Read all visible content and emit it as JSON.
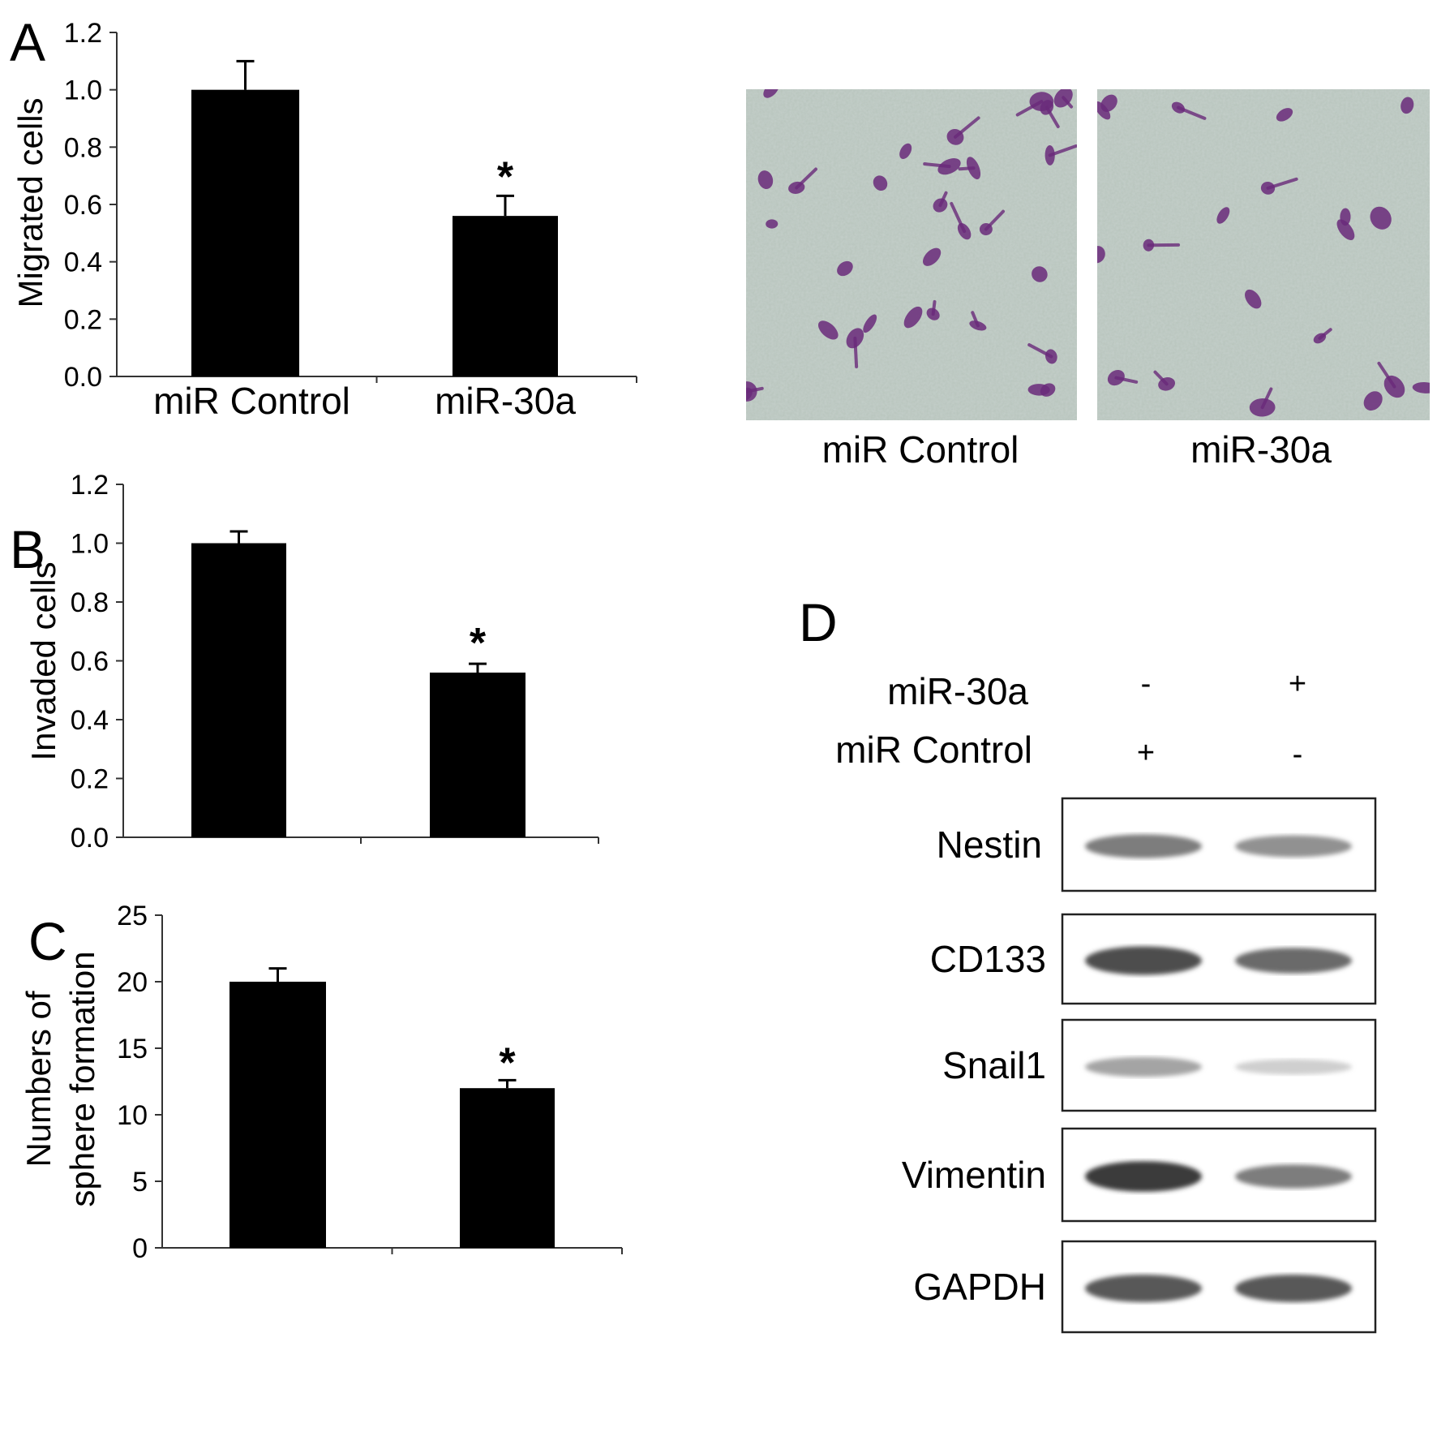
{
  "panels": {
    "A": "A",
    "B": "B",
    "C": "C",
    "D": "D"
  },
  "chart_data": [
    {
      "type": "bar",
      "panel": "A",
      "categories": [
        "miR Control",
        "miR-30a"
      ],
      "values": [
        1.0,
        0.56
      ],
      "errors": [
        0.1,
        0.07
      ],
      "significance": [
        "",
        "*"
      ],
      "ylabel": "Migrated cells",
      "xlabel": "",
      "ylim": [
        0,
        1.2
      ],
      "yticks": [
        "0.0",
        "0.2",
        "0.4",
        "0.6",
        "0.8",
        "1.0",
        "1.2"
      ],
      "color": "#000000"
    },
    {
      "type": "bar",
      "panel": "B",
      "categories": [
        "",
        ""
      ],
      "values": [
        1.0,
        0.56
      ],
      "errors": [
        0.04,
        0.03
      ],
      "significance": [
        "",
        "*"
      ],
      "ylabel": "Invaded cells",
      "xlabel": "",
      "ylim": [
        0,
        1.2
      ],
      "yticks": [
        "0.0",
        "0.2",
        "0.4",
        "0.6",
        "0.8",
        "1.0",
        "1.2"
      ],
      "color": "#000000"
    },
    {
      "type": "bar",
      "panel": "C",
      "categories": [
        "",
        ""
      ],
      "values": [
        20,
        12
      ],
      "errors": [
        1.0,
        0.6
      ],
      "significance": [
        "",
        "*"
      ],
      "ylabel": [
        "Numbers of",
        "sphere formation"
      ],
      "xlabel": "",
      "ylim": [
        0,
        25
      ],
      "yticks": [
        "0",
        "5",
        "10",
        "15",
        "20",
        "25"
      ],
      "color": "#000000"
    }
  ],
  "micrographs": {
    "labels": [
      "miR Control",
      "miR-30a"
    ],
    "background": "#b7c4bc",
    "stain": "#6a2a7a"
  },
  "western_blot": {
    "condition_rows": [
      {
        "label": "miR-30a",
        "signs": [
          "-",
          "+"
        ]
      },
      {
        "label": "miR Control",
        "signs": [
          "+",
          "-"
        ]
      }
    ],
    "bands": [
      {
        "label": "Nestin",
        "intensity": [
          0.55,
          0.45
        ]
      },
      {
        "label": "CD133",
        "intensity": [
          0.8,
          0.65
        ]
      },
      {
        "label": "Snail1",
        "intensity": [
          0.35,
          0.12
        ]
      },
      {
        "label": "Vimentin",
        "intensity": [
          0.9,
          0.55
        ]
      },
      {
        "label": "GAPDH",
        "intensity": [
          0.75,
          0.75
        ]
      }
    ]
  }
}
